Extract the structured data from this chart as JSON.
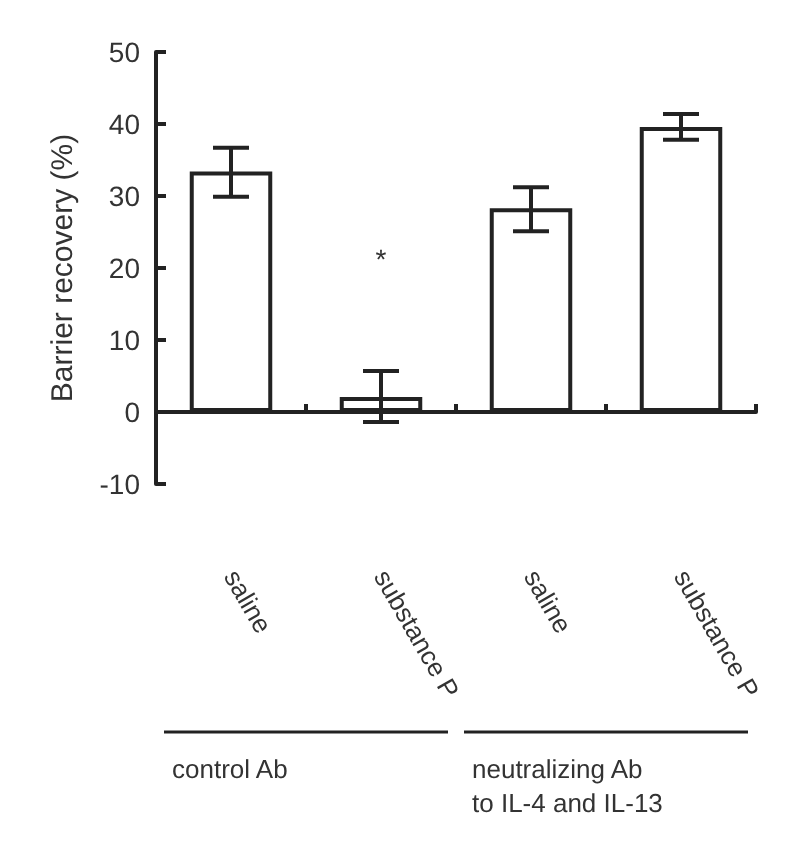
{
  "chart_data": {
    "type": "bar",
    "ylabel": "Barrier recovery (%)",
    "categories": [
      "saline",
      "substance P",
      "saline",
      "substance P"
    ],
    "values": [
      33.4,
      2.1,
      28.3,
      39.6
    ],
    "errors": [
      [
        29.9,
        36.7
      ],
      [
        -1.4,
        5.7
      ],
      [
        25.1,
        31.2
      ],
      [
        37.8,
        41.4
      ]
    ],
    "color": "#ffffff",
    "ylim": [
      -10,
      50
    ],
    "yticks": [
      -10,
      0,
      10,
      20,
      30,
      40,
      50
    ],
    "annotations": [
      "*",
      "control Ab",
      "neutralizing Ab\nto IL-4 and IL-13"
    ]
  }
}
